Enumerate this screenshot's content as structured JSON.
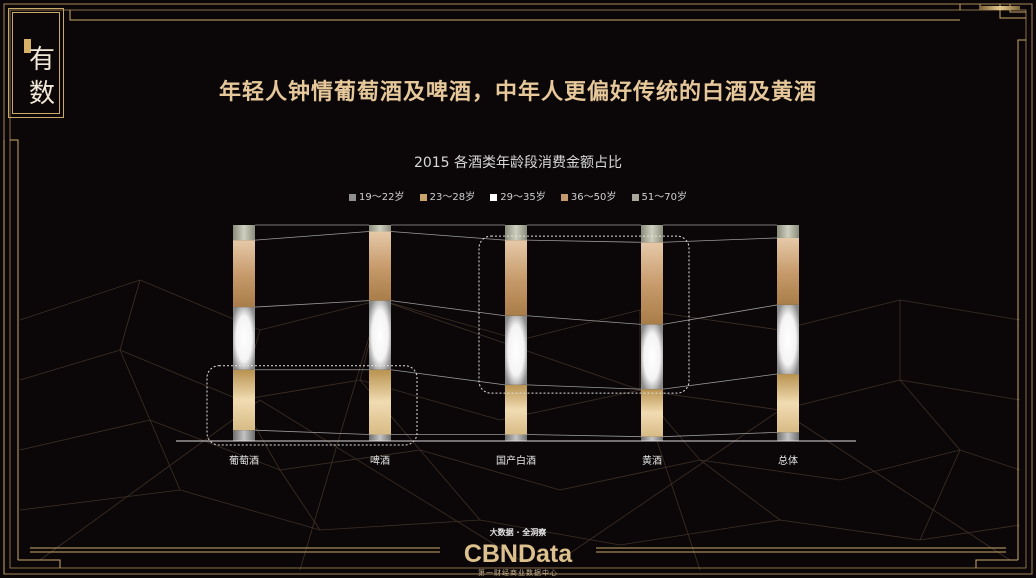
{
  "page": {
    "title": "年轻人钟情葡萄酒及啤酒，中年人更偏好传统的白酒及黄酒",
    "logo": [
      "有",
      "数"
    ]
  },
  "footer": {
    "tagline": "大数据 · 全洞察",
    "brand": "CBNData",
    "brand_sub": "第一财经商业数据中心"
  },
  "chart_data": {
    "type": "bar",
    "title": "2015 各酒类年龄段消费金额占比",
    "stacked": true,
    "normalized": true,
    "categories": [
      "葡萄酒",
      "啤酒",
      "国产白酒",
      "黄酒",
      "总体"
    ],
    "series": [
      {
        "name": "19～22岁",
        "values": [
          0.05,
          0.03,
          0.03,
          0.02,
          0.04
        ]
      },
      {
        "name": "23～28岁",
        "values": [
          0.28,
          0.3,
          0.23,
          0.22,
          0.27
        ]
      },
      {
        "name": "29～35岁",
        "values": [
          0.29,
          0.32,
          0.32,
          0.3,
          0.32
        ]
      },
      {
        "name": "36～50岁",
        "values": [
          0.31,
          0.32,
          0.35,
          0.38,
          0.31
        ]
      },
      {
        "name": "51～70岁",
        "values": [
          0.07,
          0.03,
          0.07,
          0.08,
          0.06
        ]
      }
    ],
    "colors": [
      "#8f8f8f",
      "#c8a46a",
      "#ffffff",
      "#c49a6c",
      "#a8a89a"
    ],
    "ylim": [
      0,
      1
    ],
    "grid": false,
    "legend": "top-center",
    "highlights": [
      {
        "categories": [
          "葡萄酒",
          "啤酒"
        ],
        "series": [
          "19～22岁",
          "23～28岁"
        ]
      },
      {
        "categories": [
          "国产白酒",
          "黄酒"
        ],
        "series": [
          "29～35岁",
          "36～50岁"
        ]
      }
    ]
  }
}
